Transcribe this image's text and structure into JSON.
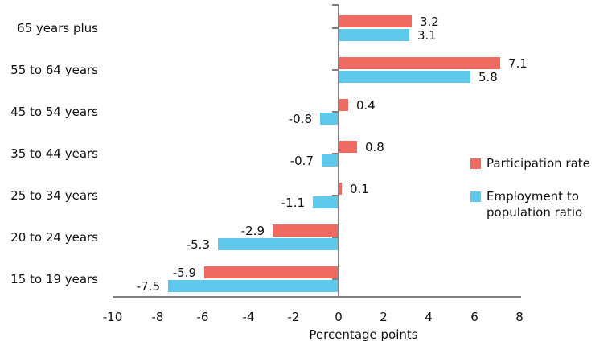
{
  "chart_data": {
    "type": "bar",
    "orientation": "horizontal",
    "title": "",
    "xlabel": "Percentage points",
    "ylabel": "",
    "categories": [
      "65 years plus",
      "55 to 64 years",
      "45 to 54 years",
      "35 to 44 years",
      "25 to 34 years",
      "20 to 24 years",
      "15 to 19 years"
    ],
    "series": [
      {
        "name": "Participation rate",
        "color": "#EF6A60",
        "values": [
          3.2,
          7.1,
          0.4,
          0.8,
          0.1,
          -2.9,
          -5.9
        ]
      },
      {
        "name": "Employment to population ratio",
        "color": "#5FC9EC",
        "values": [
          3.1,
          5.8,
          -0.8,
          -0.7,
          -1.1,
          -5.3,
          -7.5
        ]
      }
    ],
    "x_ticks": [
      -10,
      -8,
      -6,
      -4,
      -2,
      0,
      2,
      4,
      6,
      8
    ],
    "xlim": [
      -10,
      8
    ],
    "data_labels": true,
    "grid": false,
    "legend_position": "right",
    "axis_color": "#808080",
    "text_color": "#111111"
  }
}
